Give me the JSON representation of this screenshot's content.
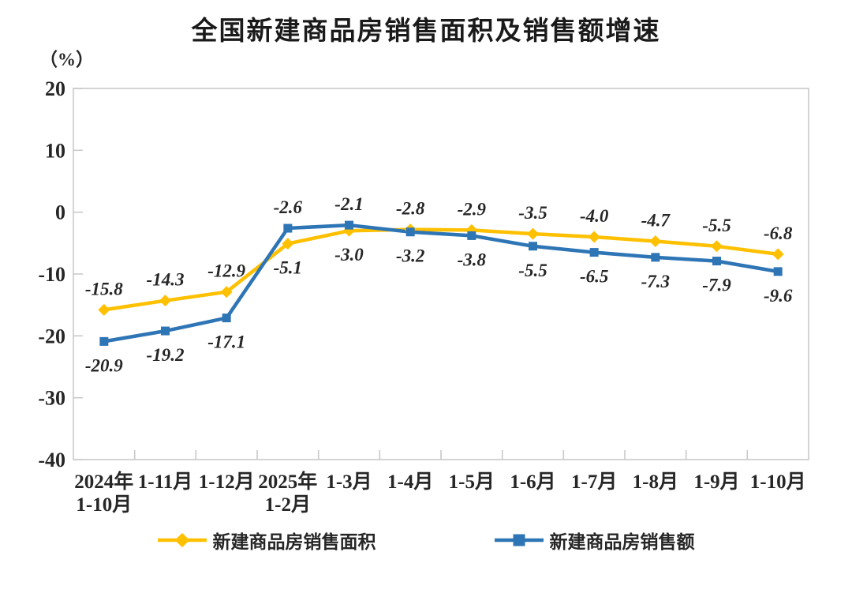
{
  "chart_data": {
    "type": "line",
    "title": "全国新建商品房销售面积及销售额增速",
    "unit_label": "（%）",
    "categories": [
      [
        "2024年",
        "1-10月"
      ],
      [
        "1-11月"
      ],
      [
        "1-12月"
      ],
      [
        "2025年",
        "1-2月"
      ],
      [
        "1-3月"
      ],
      [
        "1-4月"
      ],
      [
        "1-5月"
      ],
      [
        "1-6月"
      ],
      [
        "1-7月"
      ],
      [
        "1-8月"
      ],
      [
        "1-9月"
      ],
      [
        "1-10月"
      ]
    ],
    "series": [
      {
        "name": "新建商品房销售面积",
        "color": "#FFC000",
        "marker": "diamond",
        "values": [
          -15.8,
          -14.3,
          -12.9,
          -5.1,
          -3.0,
          -2.8,
          -2.9,
          -3.5,
          -4.0,
          -4.7,
          -5.5,
          -6.8
        ]
      },
      {
        "name": "新建商品房销售额",
        "color": "#2E75B6",
        "marker": "square",
        "values": [
          -20.9,
          -19.2,
          -17.1,
          -2.6,
          -2.1,
          -3.2,
          -3.8,
          -5.5,
          -6.5,
          -7.3,
          -7.9,
          -9.6
        ]
      }
    ],
    "ylim": [
      -40,
      20
    ],
    "yticks": [
      20,
      10,
      0,
      -10,
      -20,
      -30,
      -40
    ],
    "grid": false,
    "legend_position": "bottom",
    "axis_color": "#c9c9c9",
    "text_color": "#262626"
  }
}
